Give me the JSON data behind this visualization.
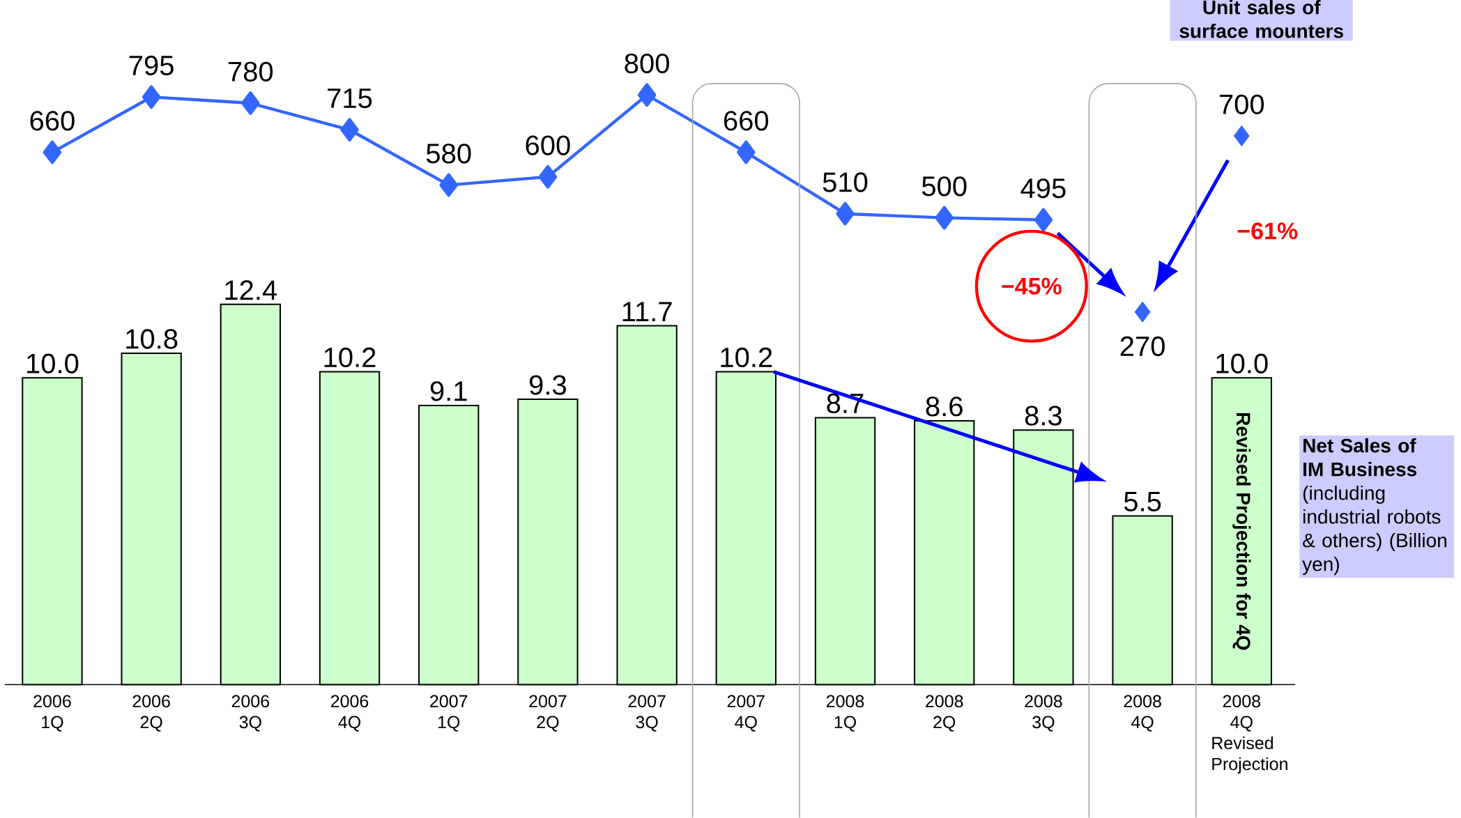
{
  "chart_data": [
    {
      "type": "line",
      "categories": [
        "2006 1Q",
        "2006 2Q",
        "2006 3Q",
        "2006 4Q",
        "2007 1Q",
        "2007 2Q",
        "2007 3Q",
        "2007 4Q",
        "2008 1Q",
        "2008 2Q",
        "2008 3Q",
        "2008 4Q",
        "2008 4Q Revised Projection"
      ],
      "series": [
        {
          "name": "Unit sales of surface mounters",
          "color": "#3366ff",
          "values": [
            660,
            795,
            780,
            715,
            580,
            600,
            800,
            660,
            510,
            500,
            495,
            null,
            null
          ]
        },
        {
          "type": "scatter",
          "color": "#3366ff",
          "values": [
            null,
            null,
            null,
            null,
            null,
            null,
            null,
            null,
            null,
            null,
            null,
            270,
            700
          ]
        }
      ],
      "marker": "diamond",
      "data_labels": true,
      "tick_labels": "x",
      "annotations": [
        "−45%",
        "−61%"
      ]
    },
    {
      "type": "bar",
      "categories": [
        null,
        null,
        null,
        null,
        null,
        null,
        null,
        null,
        null,
        null,
        null,
        null,
        null
      ],
      "tick_labels": false,
      "series": [
        {
          "name": "**Net Sales of IM Business** (including industrial robots & others) (Billion yen)",
          "type": "bar",
          "color": "#ccffcc",
          "values": [
            10.0,
            10.8,
            12.4,
            10.2,
            9.1,
            9.3,
            11.7,
            10.2,
            8.7,
            8.6,
            8.3,
            5.5,
            10.0
          ],
          "value_labels": [
            "10.0",
            "10.8",
            "12.4",
            "10.2",
            "9.1",
            "9.3",
            "11.7",
            "10.2",
            "8.7",
            "8.6",
            "8.3",
            "5.5",
            "10.0"
          ]
        }
      ],
      "annotations": [
        "Revised Projection for 4Q"
      ]
    }
  ]
}
